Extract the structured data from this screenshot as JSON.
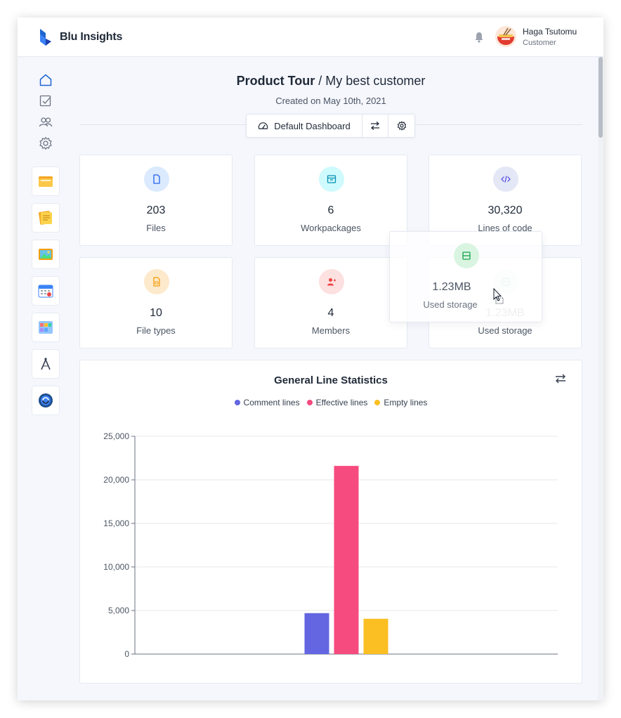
{
  "app": {
    "name": "Blu Insights"
  },
  "user": {
    "name": "Haga Tsutomu",
    "role": "Customer"
  },
  "page": {
    "title_bold": "Product Tour",
    "title_rest": " / My best customer",
    "subtitle": "Created on May 10th, 2021"
  },
  "toolbar": {
    "dashboard_label": "Default Dashboard"
  },
  "stats": [
    {
      "value": "203",
      "label": "Files",
      "icon": "file-icon",
      "color": "#3b82f6",
      "bg": "#dbeafe"
    },
    {
      "value": "6",
      "label": "Workpackages",
      "icon": "archive-icon",
      "color": "#06b6d4",
      "bg": "#cffafe"
    },
    {
      "value": "30,320",
      "label": "Lines of code",
      "icon": "code-icon",
      "color": "#6366f1",
      "bg": "#e4e7f5"
    },
    {
      "value": "10",
      "label": "File types",
      "icon": "file-type-icon",
      "color": "#f59e0b",
      "bg": "#fde9cc"
    },
    {
      "value": "4",
      "label": "Members",
      "icon": "members-icon",
      "color": "#ef4444",
      "bg": "#fde0e0"
    },
    {
      "value": "1.23MB",
      "label": "Used storage",
      "icon": "storage-icon",
      "color": "#22c55e",
      "bg": "#d9f5e2"
    }
  ],
  "drag_ghost": {
    "value": "1.23MB",
    "label": "Used storage"
  },
  "chart_data": {
    "type": "bar",
    "title": "General Line Statistics",
    "xlabel": "",
    "ylabel": "",
    "ylim": [
      0,
      25000
    ],
    "yticks": [
      "0",
      "5,000",
      "10,000",
      "15,000",
      "20,000",
      "25,000"
    ],
    "ytick_values": [
      0,
      5000,
      10000,
      15000,
      20000,
      25000
    ],
    "grid": true,
    "legend_position": "top-center",
    "series": [
      {
        "name": "Comment lines",
        "value": 4700,
        "color": "#6366e0"
      },
      {
        "name": "Effective lines",
        "value": 21600,
        "color": "#f64b7f"
      },
      {
        "name": "Empty lines",
        "value": 4050,
        "color": "#fbbf24"
      }
    ]
  }
}
